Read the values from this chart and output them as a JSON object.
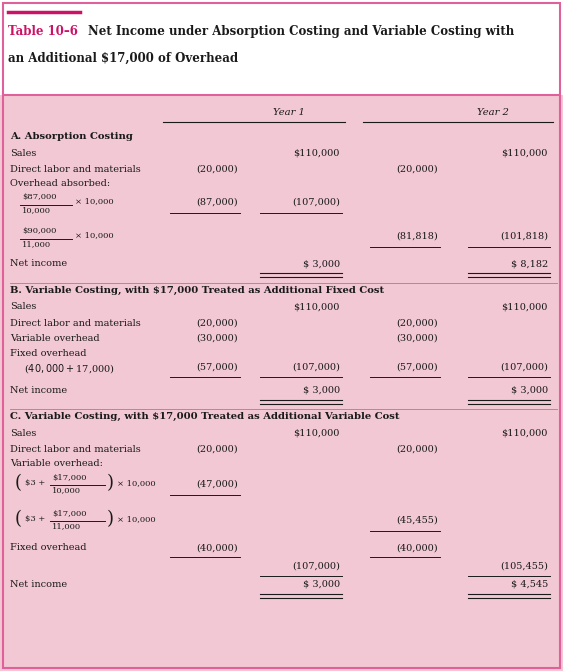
{
  "title_prefix": "Table 10–6",
  "title_main": "Net Income under Absorption Costing and Variable Costing with",
  "title_sub": "an Additional $17,000 of Overhead",
  "bg_color_title": "#FFFFFF",
  "bg_color_table": "#F2C8D4",
  "border_color": "#E0609A",
  "year1_header": "Year 1",
  "year2_header": "Year 2",
  "dark": "#1a1a1a",
  "red": "#CC1166"
}
